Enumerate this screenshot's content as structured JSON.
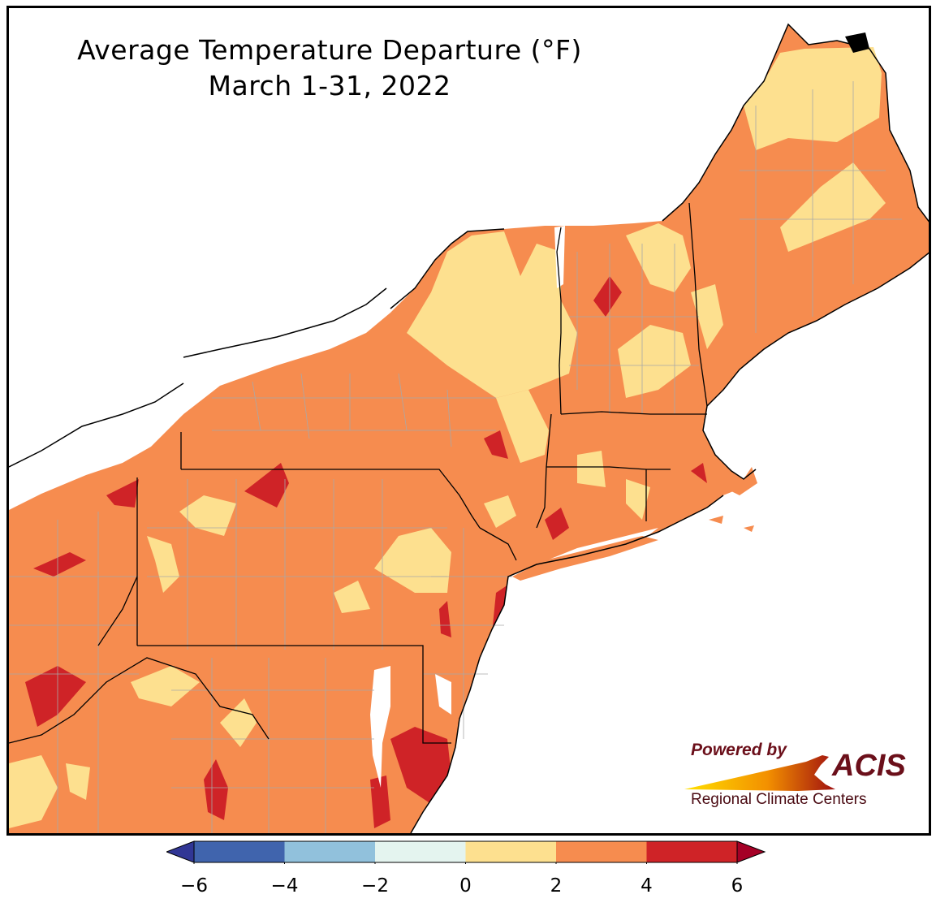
{
  "title": {
    "line1": "Average Temperature Departure (°F)",
    "line2": "March 1-31, 2022"
  },
  "colors": {
    "frame": "#000000",
    "ocean_lakes": "#ffffff",
    "state_lines": "#000000",
    "county_lines": "#a8a8a8",
    "text": "#000000"
  },
  "legend": {
    "unit": "°F",
    "extend": "both",
    "bins": [
      {
        "from": -6,
        "to": -4,
        "color": "#4064ad"
      },
      {
        "from": -4,
        "to": -2,
        "color": "#91c1dc"
      },
      {
        "from": -2,
        "to": 0,
        "color": "#e4f4ef"
      },
      {
        "from": 0,
        "to": 2,
        "color": "#fde08f"
      },
      {
        "from": 2,
        "to": 4,
        "color": "#f68c4f"
      },
      {
        "from": 4,
        "to": 6,
        "color": "#cf2327"
      }
    ],
    "under_color": "#313695",
    "over_color": "#a50026",
    "ticks": [
      "−6",
      "−4",
      "−2",
      "0",
      "2",
      "4",
      "6"
    ]
  },
  "logo": {
    "powered_by": "Powered by",
    "brand": "ACIS",
    "tagline": "Regional Climate Centers"
  }
}
